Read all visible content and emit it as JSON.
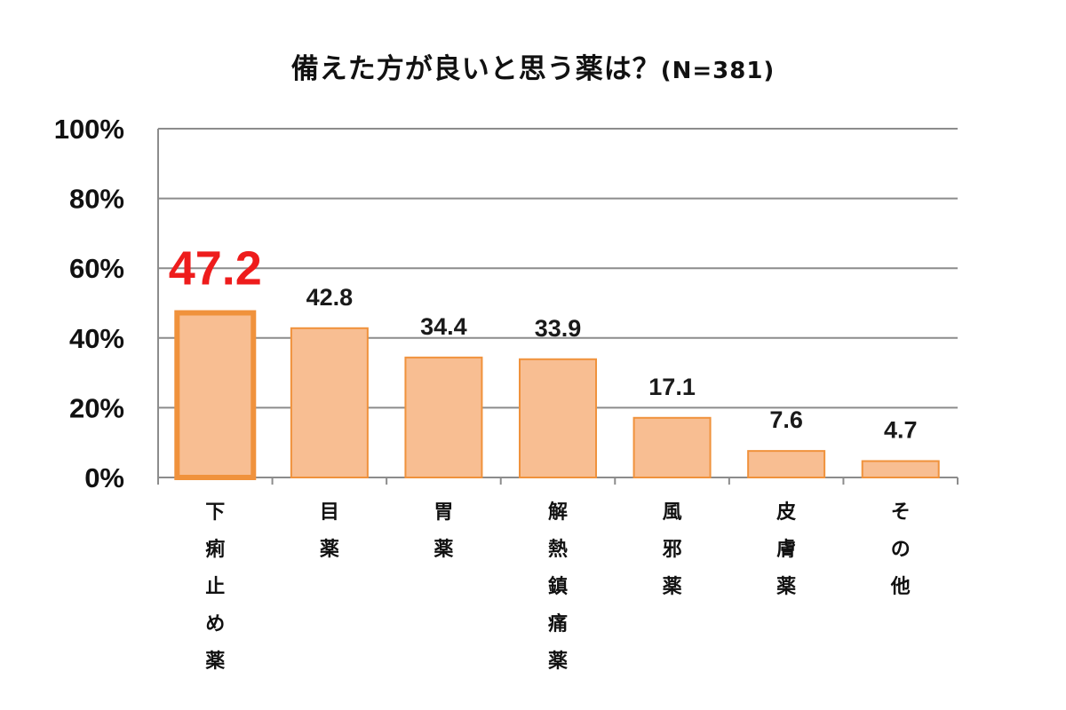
{
  "chart_data": {
    "type": "bar",
    "title": "備えた方が良いと思う薬は？",
    "subtitle": "(N=381)",
    "categories": [
      "下痢止め薬",
      "目薬",
      "胃薬",
      "解熱鎮痛薬",
      "風邪薬",
      "皮膚薬",
      "その他"
    ],
    "values": [
      47.2,
      42.8,
      34.4,
      33.9,
      17.1,
      7.6,
      4.7
    ],
    "data_labels": [
      "47.2",
      "42.8",
      "34.4",
      "33.9",
      "17.1",
      "7.6",
      "4.7"
    ],
    "y_ticks": [
      "0%",
      "20%",
      "40%",
      "60%",
      "80%",
      "100%"
    ],
    "ylim": [
      0,
      100
    ],
    "y_unit": "%",
    "xlabel": "",
    "ylabel": "",
    "grid": true,
    "highlight_index": 0,
    "colors": {
      "bar_fill": "#f8be92",
      "bar_stroke": "#f0923c",
      "highlight_stroke": "#f0923c",
      "highlight_label": "#ee1c1c",
      "grid": "#8c8c8c",
      "axis": "#8c8c8c",
      "text": "#111111"
    }
  }
}
